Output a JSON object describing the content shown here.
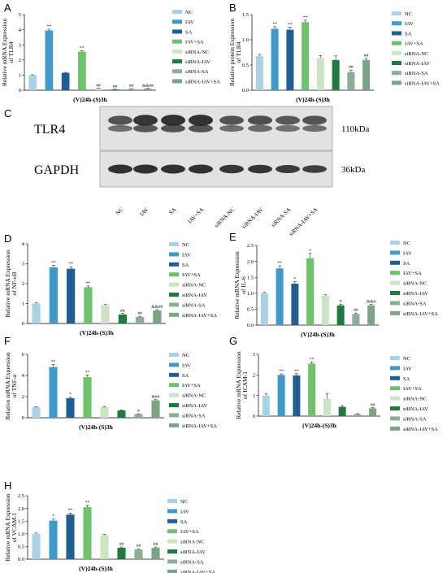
{
  "groups": [
    "NC",
    "IAV",
    "SA",
    "IAV+SA",
    "siRNA-NC",
    "siRNA-IAV",
    "siRNA-SA",
    "siRNA-IAV+SA"
  ],
  "colors": [
    "#a9d2e6",
    "#3e99cd",
    "#1f5f95",
    "#6dc26c",
    "#cce3c4",
    "#1e7a3d",
    "#8aaf95",
    "#7aa483"
  ],
  "chart_data": [
    {
      "panel": "A",
      "type": "bar",
      "ylabel": "Relative mRNA Expression of TLR4",
      "xlabel": "(V)24h-(S)3h",
      "ylim": [
        0,
        5
      ],
      "yticks": [
        "0",
        "1",
        "2",
        "3",
        "4",
        "5"
      ],
      "values": [
        1.0,
        3.95,
        1.15,
        2.55,
        0.12,
        0.05,
        0.08,
        0.1
      ],
      "errors": [
        0.02,
        0.08,
        0.03,
        0.06,
        0.02,
        0.01,
        0.02,
        0.02
      ],
      "sig": [
        "",
        "**",
        "",
        "**",
        "##",
        "##",
        "##",
        "&&##"
      ]
    },
    {
      "panel": "B",
      "type": "bar",
      "ylabel": "Relative protein Expression of TLR4",
      "xlabel": "(V)24h-(S)3h",
      "ylim": [
        0,
        1.5
      ],
      "yticks": [
        "0.0",
        "0.5",
        "1.0",
        "1.5"
      ],
      "values": [
        0.68,
        1.22,
        1.2,
        1.35,
        0.64,
        0.6,
        0.36,
        0.6
      ],
      "errors": [
        0.03,
        0.04,
        0.05,
        0.04,
        0.05,
        0.08,
        0.04,
        0.03
      ],
      "sig": [
        "",
        "**",
        "**",
        "**",
        "",
        "",
        "##",
        "##"
      ]
    },
    {
      "panel": "D",
      "type": "bar",
      "ylabel": "Relative mRNA Expression of NF-κB",
      "xlabel": "(V)24h-(S)3h",
      "ylim": [
        0,
        4
      ],
      "yticks": [
        "0",
        "1",
        "2",
        "3",
        "4"
      ],
      "values": [
        1.0,
        2.82,
        2.75,
        1.82,
        0.92,
        0.45,
        0.33,
        0.65
      ],
      "errors": [
        0.03,
        0.1,
        0.1,
        0.06,
        0.03,
        0.05,
        0.03,
        0.04
      ],
      "sig": [
        "",
        "**",
        "**",
        "**",
        "",
        "##",
        "##",
        "&&##"
      ]
    },
    {
      "panel": "E",
      "type": "bar",
      "ylabel": "Relative mRNA Expression of IL-6",
      "xlabel": "(V)24h-(S)3h",
      "ylim": [
        0,
        2.5
      ],
      "yticks": [
        "0.0",
        "0.5",
        "1.0",
        "1.5",
        "2.0",
        "2.5"
      ],
      "values": [
        1.0,
        1.78,
        1.3,
        2.1,
        0.92,
        0.62,
        0.35,
        0.62
      ],
      "errors": [
        0.03,
        0.08,
        0.06,
        0.15,
        0.03,
        0.04,
        0.03,
        0.03
      ],
      "sig": [
        "",
        "**",
        "*",
        "*",
        "",
        "#",
        "##",
        "&&#"
      ]
    },
    {
      "panel": "F",
      "type": "bar",
      "ylabel": "Relative mRNA Expression of TNF-α",
      "xlabel": "(V)24h-(S)3h",
      "ylim": [
        0,
        6
      ],
      "yticks": [
        "0",
        "2",
        "4",
        "6"
      ],
      "values": [
        1.0,
        4.8,
        1.85,
        3.85,
        1.0,
        0.7,
        0.35,
        1.65
      ],
      "errors": [
        0.05,
        0.25,
        0.12,
        0.2,
        0.05,
        0.05,
        0.03,
        0.08
      ],
      "sig": [
        "",
        "**",
        "*",
        "**",
        "",
        "",
        "#",
        "&##"
      ]
    },
    {
      "panel": "G",
      "type": "bar",
      "ylabel": "Relative mRNA Expression of ICAM-1",
      "xlabel": "(V)24h-(S)3h",
      "ylim": [
        0,
        3
      ],
      "yticks": [
        "0",
        "1",
        "2",
        "3"
      ],
      "values": [
        1.0,
        2.0,
        1.98,
        2.55,
        0.85,
        0.45,
        0.1,
        0.38
      ],
      "errors": [
        0.1,
        0.05,
        0.08,
        0.08,
        0.25,
        0.06,
        0.02,
        0.04
      ],
      "sig": [
        "",
        "**",
        "**",
        "**",
        "",
        "",
        "",
        "##"
      ]
    },
    {
      "panel": "H",
      "type": "bar",
      "ylabel": "Relative mRNA Expression of VCAM-1",
      "xlabel": "(V)24h-(S)3h",
      "ylim": [
        0,
        2.5
      ],
      "yticks": [
        "0.0",
        "0.5",
        "1.0",
        "1.5",
        "2.0",
        "2.5"
      ],
      "values": [
        1.0,
        1.52,
        1.76,
        2.05,
        0.95,
        0.45,
        0.38,
        0.45
      ],
      "errors": [
        0.03,
        0.06,
        0.06,
        0.08,
        0.03,
        0.03,
        0.03,
        0.03
      ],
      "sig": [
        "",
        "*",
        "**",
        "**",
        "",
        "##",
        "##",
        "##"
      ]
    }
  ],
  "blot": {
    "panel": "C",
    "rows": [
      {
        "label": "TLR4",
        "kda": "110kDa"
      },
      {
        "label": "GAPDH",
        "kda": "36kDa"
      }
    ],
    "lanes": [
      "NC",
      "IAV",
      "SA",
      "IAV+SA",
      "siRNA-NC",
      "siRNA-IAV",
      "siRNA-SA",
      "siRNA-IAV+SA"
    ],
    "tlr4_intensity": [
      0.55,
      0.9,
      0.95,
      0.95,
      0.55,
      0.6,
      0.5,
      0.55
    ],
    "gapdh_intensity": [
      0.9,
      0.9,
      0.9,
      0.9,
      0.85,
      0.85,
      0.8,
      0.75
    ]
  }
}
